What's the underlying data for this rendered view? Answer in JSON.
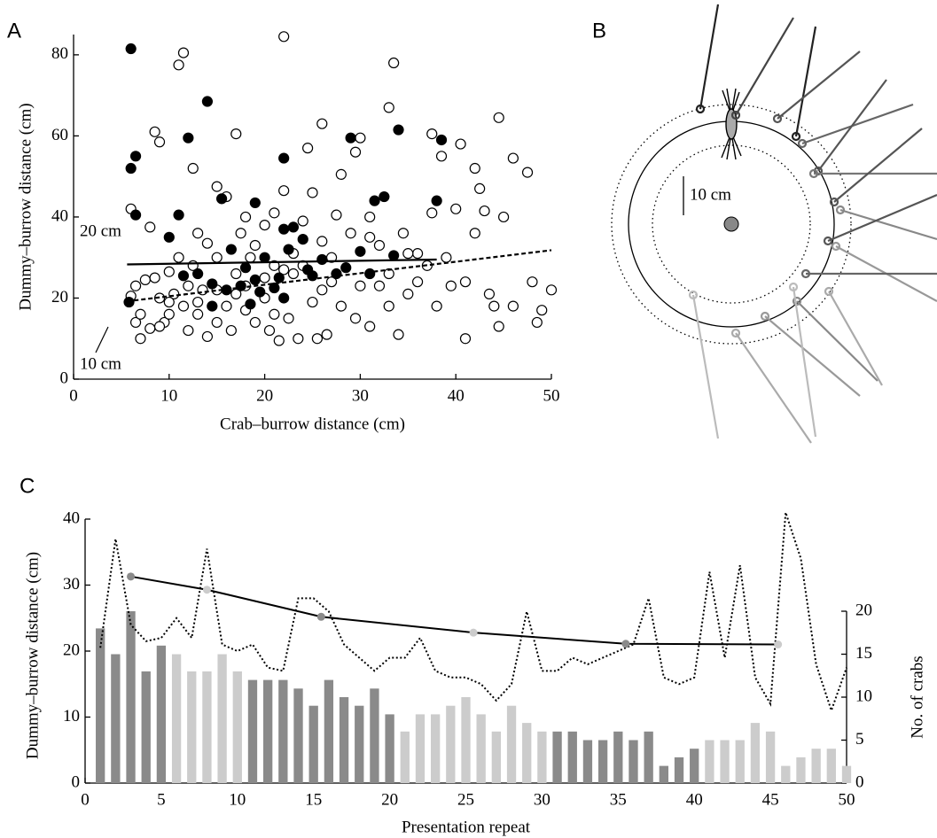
{
  "panels": [
    "A",
    "B",
    "C"
  ],
  "diagram": {
    "scale_label": "10 cm"
  },
  "chart_data": [
    {
      "type": "scatter",
      "xlabel": "Crab–burrow distance (cm)",
      "ylabel": "Dummy–burrow distance (cm)",
      "xlim": [
        0,
        50
      ],
      "ylim": [
        0,
        85
      ],
      "xticks": [
        0,
        10,
        20,
        30,
        40,
        50
      ],
      "yticks": [
        0,
        20,
        40,
        60,
        80
      ],
      "series": [
        {
          "fill": "#ffffff",
          "color": "#000000",
          "x": [
            6,
            6,
            6.5,
            6.5,
            7,
            7,
            7.5,
            8,
            8,
            8.5,
            8.5,
            9,
            9,
            9.5,
            10,
            10,
            10.5,
            11,
            11.5,
            11,
            11.5,
            12,
            12,
            12.5,
            12.5,
            13,
            13,
            13.5,
            14,
            14,
            15,
            15,
            15,
            16,
            16,
            16.5,
            17,
            17,
            17.5,
            18,
            18,
            18.5,
            19,
            19,
            20,
            20,
            20.5,
            21,
            21,
            21.5,
            22,
            22,
            22.5,
            23,
            23,
            23.5,
            24,
            24.5,
            25,
            25,
            25.5,
            26,
            26,
            26.5,
            27,
            27.5,
            28,
            28,
            29,
            29.5,
            29.5,
            30,
            30,
            31,
            31,
            32,
            32,
            33,
            33.5,
            33,
            34,
            34.5,
            35,
            36,
            37,
            37.5,
            37.5,
            38,
            38.5,
            39,
            39.5,
            40,
            40.5,
            41,
            41,
            42,
            42,
            42.5,
            43,
            43.5,
            44,
            44.5,
            44.5,
            45,
            46,
            46,
            47.5,
            48,
            48.5,
            49,
            50,
            36,
            35,
            27,
            26,
            24,
            21,
            17,
            15,
            13,
            10,
            9,
            31,
            33,
            20,
            18,
            22
          ],
          "y": [
            42,
            20.5,
            23,
            14,
            10,
            16,
            24.5,
            37.5,
            12.5,
            25,
            61,
            58.5,
            20,
            14,
            26.5,
            16,
            21,
            77.5,
            80.5,
            30,
            18,
            12,
            23,
            52,
            28,
            36,
            16,
            22,
            33.5,
            10.5,
            47.5,
            30,
            14,
            45,
            18,
            12,
            60.5,
            26,
            36,
            17,
            40,
            30,
            14,
            33,
            38,
            20,
            12,
            41,
            28,
            9.5,
            84.5,
            46.5,
            15,
            26,
            31,
            10,
            39,
            57,
            46,
            19,
            10,
            63,
            34,
            11,
            24,
            40.5,
            50.5,
            18,
            36,
            56,
            15,
            59.5,
            23,
            40,
            13,
            23,
            33,
            67,
            78,
            18,
            11,
            36,
            21,
            31,
            28,
            41,
            60.5,
            18,
            55,
            30,
            23,
            42,
            58,
            10,
            24,
            52,
            36,
            47,
            41.5,
            21,
            18,
            64.5,
            13,
            40,
            54.5,
            18,
            51,
            24,
            14,
            17,
            22,
            24,
            31,
            30,
            22,
            28,
            16,
            21,
            22,
            19,
            19,
            13,
            35,
            26,
            25,
            23,
            27
          ]
        },
        {
          "fill": "#000000",
          "color": "#000000",
          "x": [
            6,
            6,
            6.5,
            6.5,
            10,
            11,
            11.5,
            12,
            13,
            14,
            14.5,
            14.5,
            15.5,
            16,
            16.5,
            17.5,
            18,
            18.5,
            19,
            19,
            19.5,
            20,
            21,
            21.5,
            22,
            22,
            22,
            22.5,
            23,
            24,
            24.5,
            25,
            26,
            27.5,
            28.5,
            29,
            30,
            31,
            31.5,
            32.5,
            33.5,
            34,
            38,
            38.5,
            5.8
          ],
          "y": [
            81.5,
            52,
            55,
            40.5,
            35,
            40.5,
            25.5,
            59.5,
            26,
            68.5,
            23.5,
            18,
            44.5,
            22,
            32,
            23,
            27.5,
            18.5,
            43.5,
            24.5,
            21.5,
            30,
            22.5,
            25,
            54.5,
            20,
            37,
            32,
            37.5,
            34.5,
            27,
            25.5,
            29.5,
            26,
            27.5,
            59.5,
            31.5,
            26,
            44,
            45,
            30.5,
            61.5,
            44,
            59,
            19
          ]
        }
      ],
      "fit_lines": [
        {
          "label": "20 cm",
          "dashed": false,
          "x": [
            5.6,
            38
          ],
          "y": [
            28.3,
            29.5
          ]
        },
        {
          "label": "10 cm",
          "dashed": true,
          "x": [
            5.6,
            50
          ],
          "y": [
            19.2,
            31.8
          ]
        }
      ]
    },
    {
      "type": "bar",
      "xlabel": "Presentation repeat",
      "ylabel": "Dummy–burrow distance (cm)",
      "y2label": "No. of crabs",
      "xlim": [
        0,
        50
      ],
      "ylim": [
        0,
        40
      ],
      "y2lim": [
        0,
        20
      ],
      "xticks": [
        0,
        5,
        10,
        15,
        20,
        25,
        30,
        35,
        40,
        45,
        50
      ],
      "yticks": [
        0,
        10,
        20,
        30,
        40
      ],
      "y2ticks": [
        0,
        5,
        10,
        15,
        20
      ],
      "series": [
        {
          "type": "bar",
          "axis": "y2",
          "x": [
            1,
            2,
            3,
            4,
            5,
            6,
            7,
            8,
            9,
            10,
            11,
            12,
            13,
            14,
            15,
            16,
            17,
            18,
            19,
            20,
            21,
            22,
            23,
            24,
            25,
            26,
            27,
            28,
            29,
            30,
            31,
            32,
            33,
            34,
            35,
            36,
            37,
            38,
            39,
            40,
            41,
            42,
            43,
            44,
            45,
            46,
            47,
            48,
            49,
            50
          ],
          "values": [
            18,
            15,
            20,
            13,
            16,
            15,
            13,
            13,
            15,
            13,
            12,
            12,
            12,
            11,
            9,
            12,
            10,
            9,
            11,
            8,
            6,
            8,
            8,
            9,
            10,
            8,
            6,
            9,
            7,
            6,
            6,
            6,
            5,
            5,
            6,
            5,
            6,
            2,
            3,
            4,
            5,
            5,
            5,
            7,
            6,
            2,
            3,
            4,
            4,
            2
          ],
          "colors": [
            "#8a8a8a",
            "#8a8a8a",
            "#8a8a8a",
            "#8a8a8a",
            "#8a8a8a",
            "#cccccc",
            "#cccccc",
            "#cccccc",
            "#cccccc",
            "#cccccc",
            "#8a8a8a",
            "#8a8a8a",
            "#8a8a8a",
            "#8a8a8a",
            "#8a8a8a",
            "#8a8a8a",
            "#8a8a8a",
            "#8a8a8a",
            "#8a8a8a",
            "#8a8a8a",
            "#cccccc",
            "#cccccc",
            "#cccccc",
            "#cccccc",
            "#cccccc",
            "#cccccc",
            "#cccccc",
            "#cccccc",
            "#cccccc",
            "#cccccc",
            "#8a8a8a",
            "#8a8a8a",
            "#8a8a8a",
            "#8a8a8a",
            "#8a8a8a",
            "#8a8a8a",
            "#8a8a8a",
            "#8a8a8a",
            "#8a8a8a",
            "#8a8a8a",
            "#cccccc",
            "#cccccc",
            "#cccccc",
            "#cccccc",
            "#cccccc",
            "#cccccc",
            "#cccccc",
            "#cccccc",
            "#cccccc",
            "#cccccc"
          ]
        },
        {
          "type": "line",
          "style": "dotted",
          "color": "#000000",
          "x": [
            1,
            2,
            3,
            4,
            5,
            6,
            7,
            8,
            9,
            10,
            11,
            12,
            13,
            14,
            15,
            16,
            17,
            18,
            19,
            20,
            21,
            22,
            23,
            24,
            25,
            26,
            27,
            28,
            29,
            30,
            31,
            32,
            33,
            34,
            35,
            36,
            37,
            38,
            39,
            40,
            41,
            42,
            43,
            44,
            45,
            46,
            47,
            48,
            49,
            50
          ],
          "values": [
            20.5,
            37,
            24,
            21.5,
            22,
            25,
            22,
            35.5,
            21,
            20,
            21,
            17.5,
            17,
            28,
            28,
            26,
            21,
            19,
            17,
            19,
            19,
            22,
            17,
            16,
            16,
            15,
            12.5,
            15,
            26,
            17,
            17,
            19,
            18,
            19,
            20,
            21,
            28,
            16,
            15,
            16,
            32,
            19,
            33,
            16,
            12,
            41,
            34,
            18,
            11,
            17.5
          ]
        },
        {
          "type": "line",
          "style": "solid",
          "color": "#000000",
          "x": [
            3,
            8,
            15.5,
            25.5,
            35.5,
            45.5
          ],
          "values": [
            31.3,
            29.3,
            25.2,
            22.8,
            21.1,
            21
          ],
          "marker_colors": [
            "#8a8a8a",
            "#cccccc",
            "#8a8a8a",
            "#cccccc",
            "#8a8a8a",
            "#cccccc"
          ]
        }
      ]
    }
  ]
}
